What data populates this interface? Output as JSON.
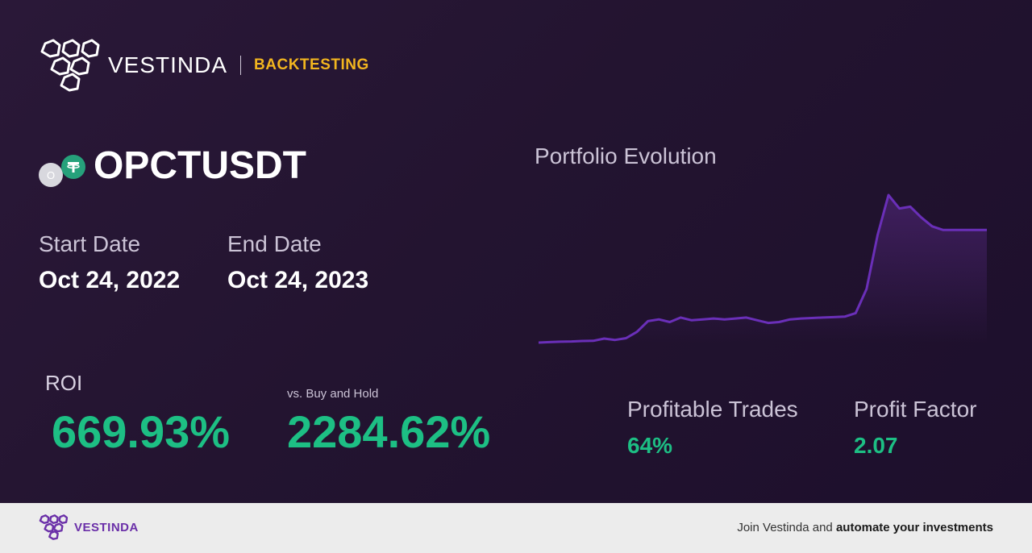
{
  "header": {
    "brand": "VESTINDA",
    "product": "BACKTESTING"
  },
  "asset": {
    "base_icon_letter": "O",
    "symbol": "OPCTUSDT"
  },
  "dates": {
    "start_label": "Start Date",
    "start_value": "Oct 24, 2022",
    "end_label": "End Date",
    "end_value": "Oct 24, 2023"
  },
  "metrics": {
    "roi_label": "ROI",
    "roi_value": "669.93%",
    "vs_label": "vs. Buy and Hold",
    "vs_value": "2284.62%",
    "profitable_trades_label": "Profitable Trades",
    "profitable_trades_value": "64%",
    "profit_factor_label": "Profit Factor",
    "profit_factor_value": "2.07"
  },
  "chart_data": {
    "type": "line",
    "title": "Portfolio Evolution",
    "xlabel": "",
    "ylabel": "",
    "grid": false,
    "series": [
      {
        "values": [
          0,
          0.5,
          1,
          1.3,
          1.8,
          2,
          4.5,
          3,
          5,
          12,
          24,
          26,
          23,
          28,
          25,
          26,
          27,
          26,
          27,
          28,
          25,
          22,
          23,
          26,
          27,
          27.5,
          28,
          28.5,
          29,
          33,
          60,
          120,
          165,
          150,
          152,
          140,
          130,
          126,
          126,
          126,
          126,
          126
        ]
      }
    ],
    "colors": {
      "line": "#6a2fb8",
      "fill_top": "#5a2a88"
    }
  },
  "footer": {
    "brand": "VESTINDA",
    "cta_prefix": "Join Vestinda and ",
    "cta_bold": "automate your investments"
  },
  "colors": {
    "accent_green": "#1dbf84",
    "accent_gold": "#f2b51f",
    "brand_purple": "#6a2fa8",
    "tether_green": "#26a17b"
  }
}
